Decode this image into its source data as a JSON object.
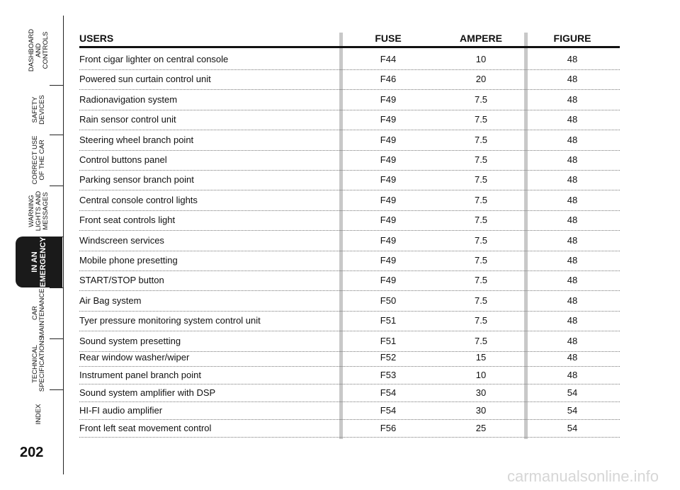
{
  "sidebar": {
    "active_tab": 4,
    "tabs": [
      {
        "lines": [
          "DASHBOARD",
          "AND",
          "CONTROLS"
        ]
      },
      {
        "lines": [
          "SAFETY",
          "DEVICES"
        ]
      },
      {
        "lines": [
          "CORRECT USE",
          "OF THE CAR"
        ]
      },
      {
        "lines": [
          "WARNING",
          "LIGHTS AND",
          "MESSAGES"
        ]
      },
      {
        "lines": [
          "IN AN",
          "EMERGENCY"
        ]
      },
      {
        "lines": [
          "CAR",
          "MAINTENANCE"
        ]
      },
      {
        "lines": [
          "TECHNICAL",
          "SPECIFICATIONS"
        ]
      },
      {
        "lines": [
          "INDEX"
        ]
      }
    ]
  },
  "page_number": "202",
  "table": {
    "headers": [
      "USERS",
      "FUSE",
      "AMPERE",
      "FIGURE"
    ],
    "rows": [
      [
        "Front cigar lighter on central console",
        "F44",
        "10",
        "48"
      ],
      [
        "Powered sun curtain control unit",
        "F46",
        "20",
        "48"
      ],
      [
        "Radionavigation system",
        "F49",
        "7.5",
        "48"
      ],
      [
        "Rain sensor control unit",
        "F49",
        "7.5",
        "48"
      ],
      [
        "Steering wheel branch point",
        "F49",
        "7.5",
        "48"
      ],
      [
        "Control buttons panel",
        "F49",
        "7.5",
        "48"
      ],
      [
        "Parking sensor branch point",
        "F49",
        "7.5",
        "48"
      ],
      [
        "Central console control lights",
        "F49",
        "7.5",
        "48"
      ],
      [
        "Front seat controls light",
        "F49",
        "7.5",
        "48"
      ],
      [
        "Windscreen services",
        "F49",
        "7.5",
        "48"
      ],
      [
        "Mobile phone presetting",
        "F49",
        "7.5",
        "48"
      ],
      [
        "START/STOP button",
        "F49",
        "7.5",
        "48"
      ],
      [
        "Air Bag system",
        "F50",
        "7.5",
        "48"
      ],
      [
        "Tyer pressure monitoring system control unit",
        "F51",
        "7.5",
        "48"
      ],
      [
        "Sound system presetting",
        "F51",
        "7.5",
        "48"
      ],
      [
        "Rear window washer/wiper",
        "F52",
        "15",
        "48"
      ],
      [
        "Instrument panel branch point",
        "F53",
        "10",
        "48"
      ],
      [
        "Sound system amplifier with DSP",
        "F54",
        "30",
        "54"
      ],
      [
        "HI-FI audio amplifier",
        "F54",
        "30",
        "54"
      ],
      [
        "Front left seat movement control",
        "F56",
        "25",
        "54"
      ]
    ]
  },
  "watermark": "carmanualsonline.info"
}
